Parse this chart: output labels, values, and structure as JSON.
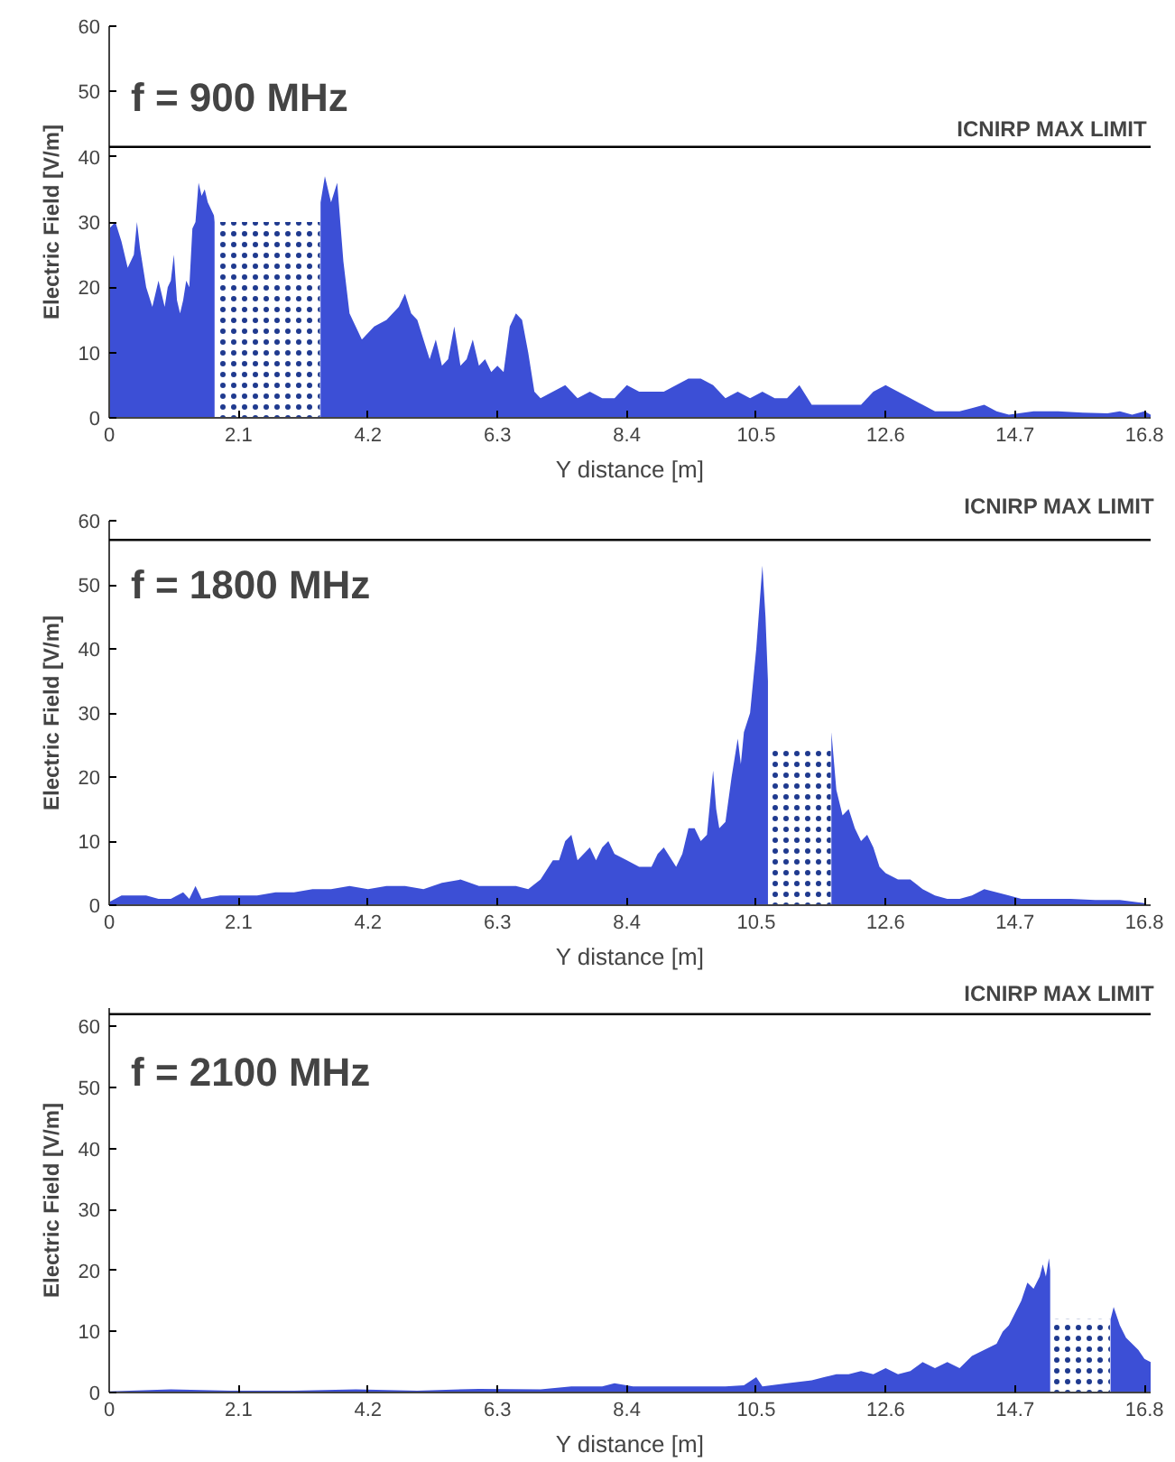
{
  "chart_data": [
    {
      "type": "area",
      "title": "f = 900 MHz",
      "xlabel": "Y distance [m]",
      "ylabel": "Electric Field [V/m]",
      "xlim": [
        0,
        16.9
      ],
      "ylim": [
        0,
        60
      ],
      "xticks": [
        0,
        2.1,
        4.2,
        6.3,
        8.4,
        10.5,
        12.6,
        14.7,
        16.8
      ],
      "yticks": [
        0,
        10,
        20,
        30,
        40,
        50,
        60
      ],
      "grid": false,
      "ref_lines": [
        {
          "axis": "y",
          "value": 41.5,
          "label": "ICNIRP MAX LIMIT",
          "color": "#000000"
        }
      ],
      "series": [
        {
          "color": "#3c4fd6",
          "x": [
            0,
            0.1,
            0.2,
            0.3,
            0.4,
            0.45,
            0.5,
            0.6,
            0.7,
            0.8,
            0.9,
            0.95,
            1.0,
            1.05,
            1.1,
            1.15,
            1.2,
            1.25,
            1.3,
            1.35,
            1.4,
            1.45,
            1.5,
            1.55,
            1.6,
            1.65,
            1.7,
            1.71,
            2.5,
            3.43,
            3.5,
            3.6,
            3.7,
            3.75,
            3.8,
            3.9,
            4.0,
            4.1,
            4.3,
            4.5,
            4.7,
            4.8,
            4.9,
            5.0,
            5.1,
            5.2,
            5.3,
            5.4,
            5.5,
            5.6,
            5.7,
            5.8,
            5.9,
            6.0,
            6.1,
            6.2,
            6.3,
            6.4,
            6.5,
            6.6,
            6.7,
            6.8,
            6.9,
            7.0,
            7.2,
            7.4,
            7.6,
            7.8,
            8.0,
            8.2,
            8.4,
            8.6,
            8.8,
            9.0,
            9.2,
            9.4,
            9.6,
            9.8,
            10.0,
            10.2,
            10.4,
            10.6,
            10.8,
            11.0,
            11.2,
            11.4,
            11.6,
            11.8,
            12.0,
            12.2,
            12.4,
            12.6,
            12.8,
            13.0,
            13.2,
            13.4,
            13.6,
            13.8,
            14.0,
            14.2,
            14.4,
            14.6,
            15.0,
            15.4,
            15.8,
            16.2,
            16.4,
            16.6,
            16.8,
            16.9
          ],
          "values": [
            29,
            30,
            27,
            23,
            25,
            30,
            26,
            20,
            17,
            21,
            17,
            20,
            21,
            25,
            18,
            16,
            18,
            21,
            20,
            29,
            30,
            36,
            34,
            35,
            33,
            32,
            31,
            30,
            null,
            33,
            37,
            33,
            36,
            30,
            24,
            16,
            14,
            12,
            14,
            15,
            17,
            19,
            16,
            15,
            12,
            9,
            12,
            8,
            9,
            14,
            8,
            9,
            12,
            8,
            9,
            7,
            8,
            7,
            14,
            16,
            15,
            10,
            4,
            3,
            4,
            5,
            3,
            4,
            3,
            3,
            5,
            4,
            4,
            4,
            5,
            6,
            6,
            5,
            3,
            4,
            3,
            4,
            3,
            3,
            5,
            2,
            2,
            2,
            2,
            2,
            4,
            5,
            4,
            3,
            2,
            1,
            1,
            1,
            1.5,
            2,
            1,
            0.5,
            1,
            1,
            0.8,
            0.7,
            1,
            0.5,
            1,
            0.5
          ]
        },
        {
          "color": "#1f3a8f",
          "line_style": "dotted",
          "x": [
            1.72,
            3.42
          ],
          "values": [
            30,
            30
          ]
        }
      ]
    },
    {
      "type": "area",
      "title": "f = 1800 MHz",
      "xlabel": "Y distance [m]",
      "ylabel": "Electric Field [V/m]",
      "xlim": [
        0,
        16.9
      ],
      "ylim": [
        0,
        60
      ],
      "xticks": [
        0,
        2.1,
        4.2,
        6.3,
        8.4,
        10.5,
        12.6,
        14.7,
        16.8
      ],
      "yticks": [
        0,
        10,
        20,
        30,
        40,
        50,
        60
      ],
      "grid": false,
      "ref_lines": [
        {
          "axis": "y",
          "value": 57,
          "label": "ICNIRP MAX LIMIT",
          "color": "#000000"
        }
      ],
      "series": [
        {
          "color": "#3c4fd6",
          "x": [
            0,
            0.2,
            0.4,
            0.6,
            0.8,
            1.0,
            1.2,
            1.3,
            1.4,
            1.5,
            1.8,
            2.1,
            2.4,
            2.7,
            3.0,
            3.3,
            3.6,
            3.9,
            4.2,
            4.5,
            4.8,
            5.1,
            5.4,
            5.7,
            6.0,
            6.3,
            6.6,
            6.8,
            7.0,
            7.2,
            7.3,
            7.4,
            7.5,
            7.6,
            7.8,
            7.9,
            8.0,
            8.1,
            8.2,
            8.4,
            8.6,
            8.8,
            8.9,
            9.0,
            9.2,
            9.3,
            9.4,
            9.5,
            9.6,
            9.7,
            9.8,
            9.85,
            9.9,
            10.0,
            10.1,
            10.2,
            10.25,
            10.3,
            10.4,
            10.5,
            10.6,
            10.65,
            10.69,
            11.2,
            11.72,
            11.8,
            11.9,
            12.0,
            12.1,
            12.2,
            12.3,
            12.4,
            12.5,
            12.6,
            12.8,
            13.0,
            13.2,
            13.4,
            13.6,
            13.8,
            14.0,
            14.2,
            14.4,
            14.6,
            14.8,
            15.2,
            15.6,
            16.0,
            16.4,
            16.8
          ],
          "values": [
            0.5,
            1.5,
            1.5,
            1.5,
            1,
            1,
            2,
            1,
            3,
            1,
            1.5,
            1.5,
            1.5,
            2,
            2,
            2.5,
            2.5,
            3,
            2.5,
            3,
            3,
            2.5,
            3.5,
            4,
            3,
            3,
            3,
            2.5,
            4,
            7,
            7,
            10,
            11,
            7,
            9,
            7,
            9,
            10,
            8,
            7,
            6,
            6,
            8,
            9,
            6,
            8,
            12,
            12,
            10,
            11,
            21,
            15,
            12,
            13,
            20,
            26,
            22,
            27,
            30,
            40,
            53,
            45,
            35,
            null,
            27,
            18,
            14,
            15,
            12,
            10,
            11,
            9,
            6,
            5,
            4,
            4,
            2.5,
            1.5,
            1,
            1,
            1.5,
            2.5,
            2,
            1.5,
            1,
            1,
            1,
            0.8,
            0.8,
            0.3
          ]
        },
        {
          "color": "#1f3a8f",
          "line_style": "dotted",
          "x": [
            10.7,
            11.71
          ],
          "values": [
            24.5,
            24.5
          ]
        }
      ]
    },
    {
      "type": "area",
      "title": "f = 2100 MHz",
      "xlabel": "Y distance [m]",
      "ylabel": "Electric Field [V/m]",
      "xlim": [
        0,
        16.9
      ],
      "ylim": [
        0,
        63
      ],
      "xticks": [
        0,
        2.1,
        4.2,
        6.3,
        8.4,
        10.5,
        12.6,
        14.7,
        16.8
      ],
      "yticks": [
        0,
        10,
        20,
        30,
        40,
        50,
        60
      ],
      "grid": false,
      "ref_lines": [
        {
          "axis": "y",
          "value": 62,
          "label": "ICNIRP MAX LIMIT",
          "color": "#000000"
        }
      ],
      "series": [
        {
          "color": "#3c4fd6",
          "x": [
            0,
            1.0,
            2.0,
            3.0,
            4.0,
            5.0,
            6.0,
            7.0,
            7.5,
            8.0,
            8.2,
            8.5,
            9.0,
            9.5,
            10.0,
            10.3,
            10.5,
            10.6,
            11.0,
            11.4,
            11.6,
            11.8,
            12.0,
            12.2,
            12.4,
            12.6,
            12.8,
            13.0,
            13.2,
            13.4,
            13.6,
            13.8,
            14.0,
            14.2,
            14.4,
            14.5,
            14.6,
            14.7,
            14.8,
            14.9,
            15.0,
            15.1,
            15.15,
            15.2,
            15.25,
            15.27,
            15.8,
            16.25,
            16.3,
            16.4,
            16.5,
            16.6,
            16.7,
            16.8,
            16.9
          ],
          "values": [
            0.2,
            0.5,
            0.3,
            0.3,
            0.5,
            0.3,
            0.6,
            0.5,
            1,
            1,
            1.5,
            1,
            1,
            1,
            1,
            1.2,
            2.5,
            1,
            1.5,
            2,
            2.5,
            3,
            3,
            3.5,
            3,
            4,
            3,
            3.5,
            5,
            4,
            5,
            4,
            6,
            7,
            8,
            10,
            11,
            13,
            15,
            18,
            17,
            19,
            21,
            19,
            22,
            20,
            null,
            12,
            14,
            11,
            9,
            8,
            7,
            5.5,
            5
          ]
        },
        {
          "color": "#1f3a8f",
          "line_style": "dotted",
          "x": [
            15.28,
            16.24
          ],
          "values": [
            12,
            12
          ]
        }
      ]
    }
  ]
}
